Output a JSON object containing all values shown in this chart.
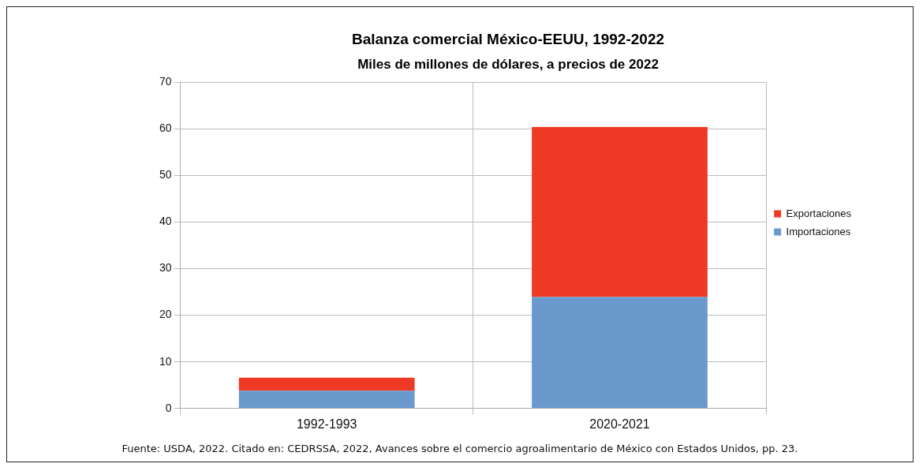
{
  "chart_data": {
    "type": "bar",
    "title": "Balanza comercial México-EEUU, 1992-2022",
    "subtitle": "Miles de millones de dólares, a precios de 2022",
    "categories": [
      "1992-1993",
      "2020-2021"
    ],
    "series": [
      {
        "name": "Importaciones",
        "color": "#6a9acd",
        "values": [
          3.8,
          23.9
        ]
      },
      {
        "name": "Exportaciones",
        "color": "#ee3a24",
        "values": [
          2.8,
          36.5
        ]
      }
    ],
    "stacked": true,
    "ylim": [
      0,
      70
    ],
    "yticks": [
      0,
      10,
      20,
      30,
      40,
      50,
      60,
      70
    ],
    "grid": true,
    "legend": "right",
    "annotations": [
      "Fuente: USDA, 2022. Citado en: CEDRSSA, 2022, Avances sobre el comercio agroalimentario de México con Estados Unidos, pp. 23."
    ]
  }
}
